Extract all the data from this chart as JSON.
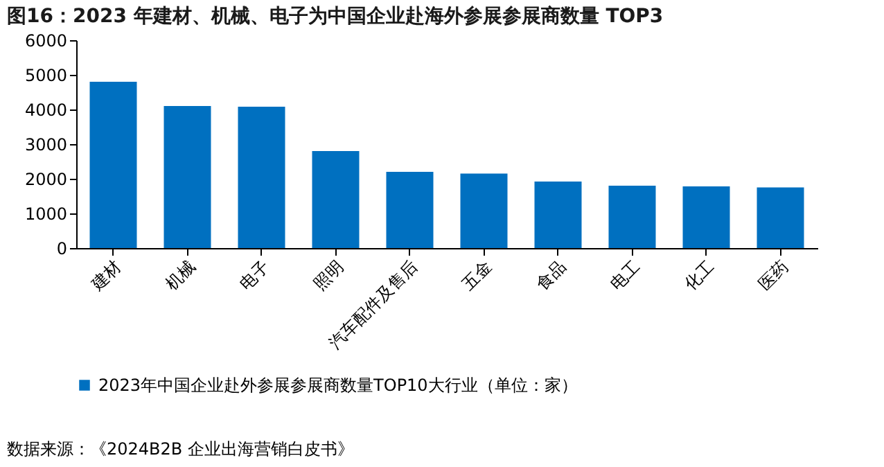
{
  "chart_data": {
    "type": "bar",
    "title": "图16：2023 年建材、机械、电子为中国企业赴海外参展参展商数量 TOP3",
    "categories": [
      "建材",
      "机械",
      "电子",
      "照明",
      "汽车配件及售后",
      "五金",
      "食品",
      "电工",
      "化工",
      "医药"
    ],
    "series": [
      {
        "name": "2023年中国企业赴外参展参展商数量TOP10大行业（单位：家）",
        "color": "#0070c0",
        "values": [
          4800,
          4100,
          4080,
          2800,
          2200,
          2150,
          1920,
          1800,
          1780,
          1750
        ]
      }
    ],
    "ylim": [
      0,
      6000
    ],
    "yticks": [
      0,
      1000,
      2000,
      3000,
      4000,
      5000,
      6000
    ],
    "grid": false,
    "legend": "bottom",
    "annotations": [
      "数据来源：《2024B2B 企业出海营销白皮书》"
    ]
  }
}
